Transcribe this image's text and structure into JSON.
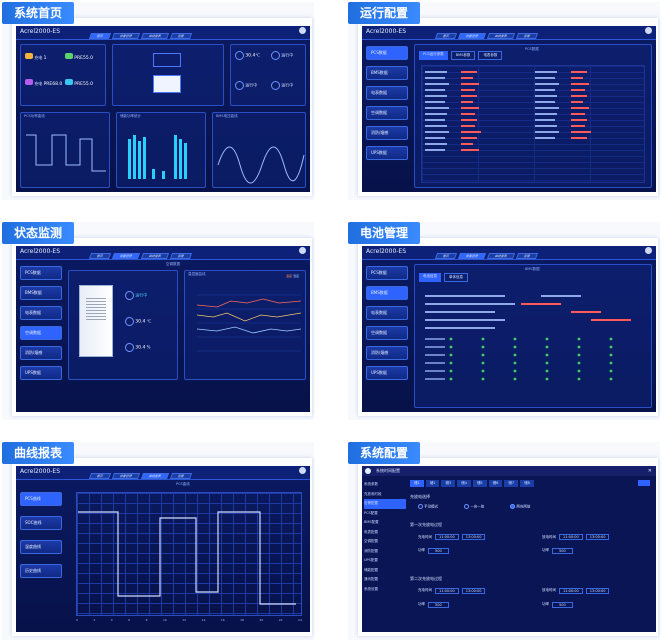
{
  "app": {
    "name": "Acrel2000-ES",
    "tabs": [
      "首页",
      "设备管理",
      "曲线报表",
      "告警"
    ],
    "user_info": "2022-10-26\n管理员"
  },
  "cards": {
    "home": {
      "label": "系统首页",
      "logo": "Acrel2000-ES",
      "stats": [
        {
          "name": "充电",
          "value": "1",
          "unit": "kWh"
        },
        {
          "name": "放电",
          "value": "PRE55.0",
          "unit": "kWh"
        },
        {
          "name": "充电",
          "value": "PRE68.0",
          "unit": "kWh"
        },
        {
          "name": "放电",
          "value": "PRE55.0",
          "unit": "kWh"
        }
      ],
      "env": [
        {
          "name": "温度",
          "value": "30.4",
          "unit": "℃"
        },
        {
          "name": "湿度",
          "value": "运行中"
        },
        {
          "name": "门禁",
          "value": "运行中"
        },
        {
          "name": "消防",
          "value": "运行中"
        }
      ],
      "charts": [
        "PCS功率曲线",
        "储能功率统计",
        "BMS电压曲线"
      ]
    },
    "config": {
      "label": "运行配置",
      "logo": "Acrel2000-ES",
      "side": [
        "PCS数据",
        "BMS数据",
        "电表数据",
        "空调数据",
        "消防/烟感",
        "UPS数据"
      ],
      "subtabs": [
        "PCS运行参数",
        "BMS参数",
        "电表参数"
      ],
      "table_title": "PCS数据"
    },
    "monitor": {
      "label": "状态监测",
      "logo": "Acrel2000-ES",
      "side": [
        "PCS数据",
        "BMS数据",
        "电表数据",
        "空调数据",
        "消防/烟感",
        "UPS数据"
      ],
      "title": "空调数据",
      "items": [
        {
          "name": "运行状态",
          "value": "运行中"
        },
        {
          "name": "温度",
          "value": "30.4",
          "unit": "℃"
        },
        {
          "name": "湿度",
          "value": "30.4",
          "unit": "%"
        }
      ],
      "chart_title": "温湿度曲线",
      "legend": [
        "温度",
        "湿度"
      ]
    },
    "battery": {
      "label": "电池管理",
      "logo": "Acrel2000-ES",
      "side": [
        "PCS数据",
        "BMS数据",
        "电表数据",
        "空调数据",
        "消防/烟感",
        "UPS数据"
      ],
      "subtabs": [
        "电池信息",
        "单体信息"
      ],
      "table_title": "BMS数据"
    },
    "curve": {
      "label": "曲线报表",
      "logo": "Acrel2000-ES",
      "side": [
        "PCS曲线",
        "SOC曲线",
        "温度曲线",
        "历史曲线"
      ],
      "chart_title": "PCS曲线",
      "x_ticks": [
        "0",
        "1",
        "2",
        "3",
        "4",
        "5",
        "6",
        "7",
        "8",
        "9",
        "10",
        "11",
        "12",
        "13",
        "14",
        "15",
        "16",
        "17",
        "18",
        "19",
        "20",
        "21",
        "22",
        "23",
        "24"
      ]
    },
    "system": {
      "label": "系统配置",
      "title": "系统时间配置",
      "side": [
        "系统参数",
        "充放电时段",
        "告警配置",
        "PCS配置",
        "BMS配置",
        "电表配置",
        "空调配置",
        "消防配置",
        "UPS配置",
        "储能配置",
        "通讯配置",
        "系统设置"
      ],
      "top_tabs": [
        "储1",
        "储2",
        "储3",
        "储4",
        "储5",
        "储6",
        "储7",
        "储8"
      ],
      "section1": "充放电选择",
      "radios": [
        "手动模式",
        "一充一放",
        "两充两放"
      ],
      "section2": "第一次充放电过程",
      "section3": "第二次充放电过程",
      "fields": [
        "充电时间",
        "11:00:00",
        "13:00:00",
        "放电时间",
        "功率",
        "500"
      ]
    }
  }
}
